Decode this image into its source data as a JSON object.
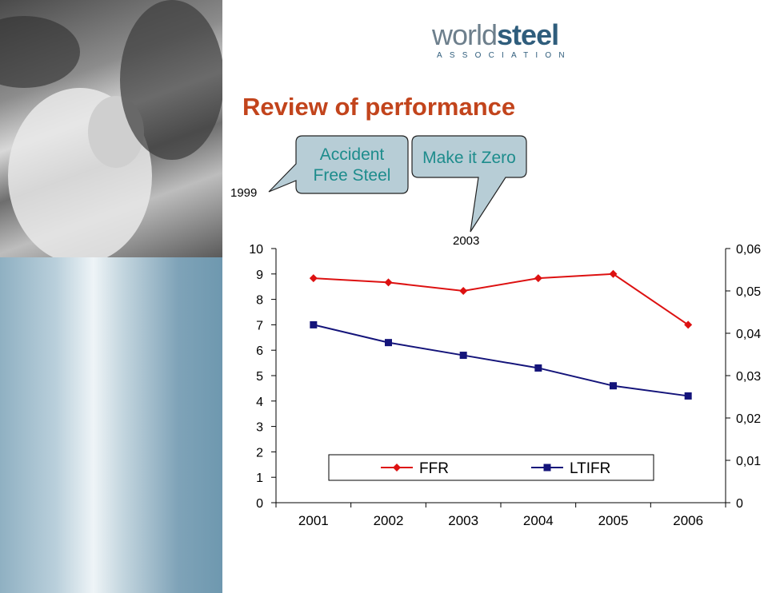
{
  "header": {
    "logo": {
      "word_light": "world",
      "word_bold": "steel",
      "subtitle": "ASSOCIATION"
    },
    "title": "Review of performance"
  },
  "timeline": {
    "year_1999": "1999",
    "callout_1": {
      "line1": "Accident",
      "line2": "Free Steel"
    },
    "callout_2": "Make it Zero",
    "year_2003": "2003"
  },
  "colors": {
    "title": "#c2441c",
    "callout_text": "#1d8c8c",
    "callout_fill": "#b7cdd6",
    "ffr": "#dd1111",
    "ltifr": "#14147a"
  },
  "chart_data": {
    "type": "line",
    "x": [
      "2001",
      "2002",
      "2003",
      "2004",
      "2005",
      "2006"
    ],
    "series": [
      {
        "name": "FFR",
        "axis": "right",
        "marker": "diamond",
        "values": [
          0.053,
          0.052,
          0.05,
          0.053,
          0.054,
          0.042
        ]
      },
      {
        "name": "LTIFR",
        "axis": "left",
        "marker": "square",
        "values": [
          7.0,
          6.3,
          5.8,
          5.3,
          4.6,
          4.2
        ]
      }
    ],
    "left_axis": {
      "ylim": [
        0,
        10
      ],
      "ticks": [
        "0",
        "1",
        "2",
        "3",
        "4",
        "5",
        "6",
        "7",
        "8",
        "9",
        "10"
      ]
    },
    "right_axis": {
      "ylim": [
        0,
        0.06
      ],
      "ticks": [
        "0",
        "0,01",
        "0,02",
        "0,03",
        "0,04",
        "0,05",
        "0,06"
      ]
    },
    "legend": {
      "placement": "bottom-center",
      "entries": [
        "FFR",
        "LTIFR"
      ]
    },
    "grid": false
  }
}
